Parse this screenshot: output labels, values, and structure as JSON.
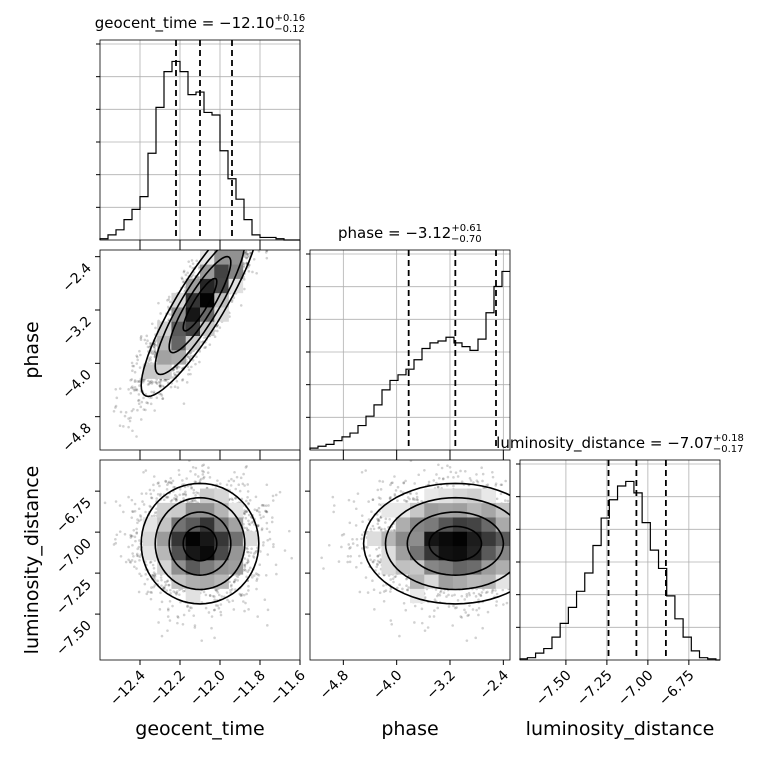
{
  "chart_data": {
    "type": "corner",
    "parameters": [
      "geocent_time",
      "phase",
      "luminosity_distance"
    ],
    "titles": [
      {
        "name": "geocent_time",
        "median": "−12.10",
        "plus": "+0.16",
        "minus": "−0.12"
      },
      {
        "name": "phase",
        "median": "−3.12",
        "plus": "+0.61",
        "minus": "−0.70"
      },
      {
        "name": "luminosity_distance",
        "median": "−7.07",
        "plus": "+0.18",
        "minus": "−0.17"
      }
    ],
    "ranges": [
      [
        -12.6,
        -11.6
      ],
      [
        -5.3,
        -2.3
      ],
      [
        -7.78,
        -6.56
      ]
    ],
    "ticks": [
      {
        "values": [
          -12.4,
          -12.2,
          -12.0,
          -11.8,
          -11.6
        ],
        "labels": [
          "−12.4",
          "−12.2",
          "−12.0",
          "−11.8",
          "−11.6"
        ]
      },
      {
        "values": [
          -4.8,
          -4.0,
          -3.2,
          -2.4
        ],
        "labels": [
          "−4.8",
          "−4.0",
          "−3.2",
          "−2.4"
        ]
      },
      {
        "values": [
          -7.5,
          -7.25,
          -7.0,
          -6.75
        ],
        "labels": [
          "−7.50",
          "−7.25",
          "−7.00",
          "−6.75"
        ]
      }
    ],
    "quantiles": [
      [
        -12.22,
        -12.1,
        -11.94
      ],
      [
        -3.82,
        -3.12,
        -2.51
      ],
      [
        -7.24,
        -7.07,
        -6.89
      ]
    ],
    "histograms": [
      {
        "x": [
          -12.58,
          -12.54,
          -12.5,
          -12.46,
          -12.42,
          -12.38,
          -12.34,
          -12.3,
          -12.26,
          -12.22,
          -12.18,
          -12.14,
          -12.1,
          -12.06,
          -12.02,
          -11.98,
          -11.94,
          -11.9,
          -11.86,
          -11.82,
          -11.78,
          -11.74,
          -11.7,
          -11.66,
          -11.62
        ],
        "counts": [
          0.5,
          2,
          4,
          8,
          12,
          17,
          34,
          52,
          66,
          70,
          66,
          57,
          58,
          50,
          49,
          35,
          24,
          16,
          8,
          2,
          1,
          1,
          0.5,
          0,
          0
        ]
      },
      {
        "x": [
          -5.24,
          -5.12,
          -5.0,
          -4.88,
          -4.76,
          -4.64,
          -4.52,
          -4.4,
          -4.28,
          -4.16,
          -4.04,
          -3.92,
          -3.8,
          -3.68,
          -3.56,
          -3.44,
          -3.32,
          -3.2,
          -3.08,
          -2.96,
          -2.84,
          -2.72,
          -2.6,
          -2.48,
          -2.36
        ],
        "counts": [
          1,
          2,
          3,
          5,
          7,
          9,
          13,
          18,
          24,
          32,
          37,
          40,
          43,
          48,
          54,
          57,
          58,
          60,
          57,
          55,
          53,
          59,
          73,
          87,
          95
        ]
      },
      {
        "x": [
          -7.76,
          -7.71,
          -7.66,
          -7.61,
          -7.56,
          -7.51,
          -7.46,
          -7.41,
          -7.36,
          -7.31,
          -7.26,
          -7.21,
          -7.16,
          -7.11,
          -7.06,
          -7.01,
          -6.96,
          -6.91,
          -6.86,
          -6.81,
          -6.76,
          -6.71,
          -6.66,
          -6.61,
          -6.56
        ],
        "counts": [
          0.5,
          1,
          3,
          5,
          10,
          16,
          23,
          30,
          38,
          50,
          62,
          70,
          76,
          78,
          73,
          60,
          48,
          40,
          28,
          18,
          10,
          4,
          1,
          0.5,
          0
        ]
      }
    ]
  }
}
